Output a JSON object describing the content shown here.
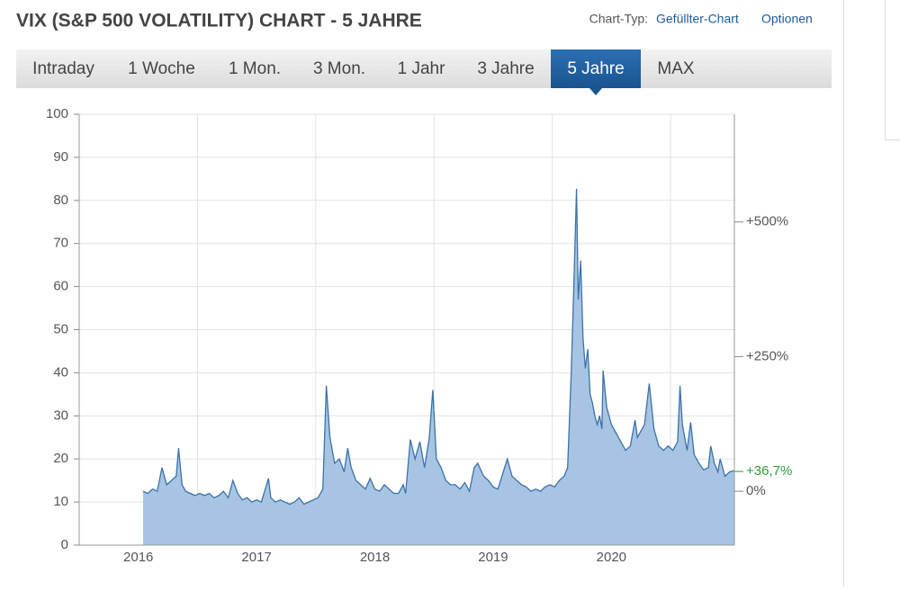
{
  "header": {
    "title": "VIX (S&P 500 VOLATILITY) CHART - 5 JAHRE",
    "chart_type_label": "Chart-Typ:",
    "chart_type": "Gefüllter-Chart",
    "options": "Optionen"
  },
  "tabs": {
    "items": [
      "Intraday",
      "1 Woche",
      "1 Mon.",
      "3 Mon.",
      "1 Jahr",
      "3 Jahre",
      "5 Jahre",
      "MAX"
    ],
    "active": 6
  },
  "chart_data": {
    "type": "area",
    "color": "#3b72aa",
    "fill": "#a7c4e2",
    "x": [
      2016.54,
      2016.58,
      2016.62,
      2016.66,
      2016.7,
      2016.74,
      2016.78,
      2016.82,
      2016.84,
      2016.87,
      2016.9,
      2016.94,
      2016.98,
      2017.02,
      2017.06,
      2017.1,
      2017.14,
      2017.18,
      2017.22,
      2017.26,
      2017.3,
      2017.34,
      2017.38,
      2017.42,
      2017.46,
      2017.5,
      2017.54,
      2017.6,
      2017.62,
      2017.66,
      2017.7,
      2017.74,
      2017.78,
      2017.82,
      2017.86,
      2017.9,
      2017.94,
      2017.98,
      2018.02,
      2018.06,
      2018.09,
      2018.12,
      2018.16,
      2018.2,
      2018.24,
      2018.27,
      2018.3,
      2018.34,
      2018.38,
      2018.42,
      2018.46,
      2018.5,
      2018.54,
      2018.58,
      2018.62,
      2018.66,
      2018.7,
      2018.74,
      2018.76,
      2018.8,
      2018.84,
      2018.88,
      2018.92,
      2018.96,
      2018.99,
      2019.02,
      2019.06,
      2019.1,
      2019.14,
      2019.18,
      2019.22,
      2019.26,
      2019.3,
      2019.34,
      2019.37,
      2019.42,
      2019.46,
      2019.5,
      2019.54,
      2019.62,
      2019.64,
      2019.66,
      2019.7,
      2019.74,
      2019.78,
      2019.82,
      2019.86,
      2019.9,
      2019.94,
      2019.98,
      2020.02,
      2020.06,
      2020.1,
      2020.13,
      2020.16,
      2020.18,
      2020.205,
      2020.22,
      2020.24,
      2020.26,
      2020.28,
      2020.3,
      2020.32,
      2020.34,
      2020.36,
      2020.38,
      2020.4,
      2020.42,
      2020.43,
      2020.46,
      2020.5,
      2020.54,
      2020.58,
      2020.62,
      2020.66,
      2020.7,
      2020.72,
      2020.76,
      2020.78,
      2020.82,
      2020.86,
      2020.9,
      2020.94,
      2020.98,
      2021.02,
      2021.06,
      2021.08,
      2021.1,
      2021.14,
      2021.17,
      2021.2,
      2021.24,
      2021.28,
      2021.32,
      2021.34,
      2021.37,
      2021.4,
      2021.42,
      2021.46,
      2021.5,
      2021.54
    ],
    "values": [
      12.5,
      12,
      13,
      12.5,
      18,
      14,
      15,
      16,
      22.5,
      14,
      12.5,
      12,
      11.5,
      12,
      11.5,
      12,
      11,
      11.5,
      12.5,
      11,
      15,
      12,
      10.5,
      11,
      10,
      10.5,
      10,
      15.5,
      11,
      10,
      10.5,
      10,
      9.5,
      10,
      11,
      9.5,
      10,
      10.5,
      11,
      13,
      37,
      25,
      19,
      20,
      17,
      22.5,
      18,
      15,
      14,
      13,
      15.5,
      13,
      12.5,
      14,
      13,
      12,
      12,
      14,
      12,
      24.5,
      20,
      24,
      18,
      25,
      36,
      20,
      18,
      15,
      14,
      14,
      13,
      14.5,
      12.5,
      18,
      19,
      16,
      15,
      13.5,
      13,
      20,
      18,
      16,
      15,
      14,
      13.5,
      12.5,
      13,
      12.5,
      13.5,
      14,
      13.5,
      15,
      16,
      18,
      40,
      58,
      82.7,
      57,
      66,
      48,
      41,
      45.5,
      35,
      33,
      30,
      28,
      30,
      27,
      40.5,
      32,
      28,
      26,
      24,
      22,
      23,
      29,
      25,
      27,
      28,
      37.5,
      27,
      23,
      22,
      23,
      22,
      24,
      37,
      28,
      22,
      28.5,
      21,
      19,
      17.5,
      18,
      23,
      19,
      17,
      20,
      16,
      17,
      17.3
    ],
    "xlim": [
      2016.0,
      2021.54
    ],
    "xticks": [
      {
        "value": 2016.5,
        "label": "2016"
      },
      {
        "value": 2017.5,
        "label": "2017"
      },
      {
        "value": 2018.5,
        "label": "2018"
      },
      {
        "value": 2019.5,
        "label": "2019"
      },
      {
        "value": 2020.5,
        "label": "2020"
      }
    ],
    "xgrid": [
      2017,
      2018,
      2019,
      2020,
      2021
    ],
    "ylim": [
      0,
      100
    ],
    "yticks": [
      0,
      10,
      20,
      30,
      40,
      50,
      60,
      70,
      80,
      90,
      100
    ],
    "y2lim": [
      -100,
      700
    ],
    "y2ticks": [
      {
        "value": 0,
        "label": "0%"
      },
      {
        "value": 250,
        "label": "+250%"
      },
      {
        "value": 500,
        "label": "+500%"
      }
    ],
    "last_change": {
      "value": 36.7,
      "label": "+36,7%",
      "color": "#2e9a3a"
    },
    "grid": true
  }
}
